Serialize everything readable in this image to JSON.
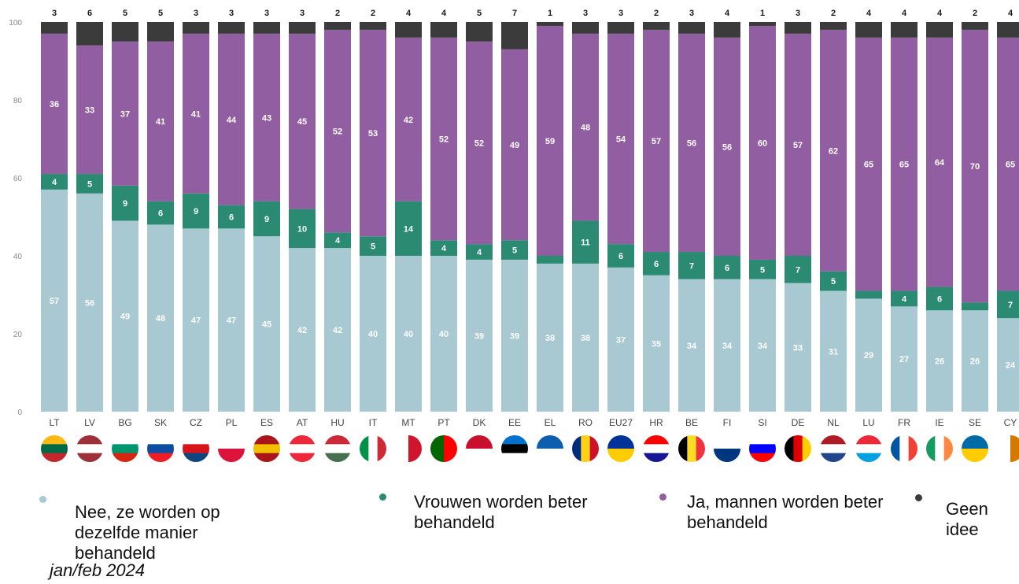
{
  "chart_data": {
    "type": "bar",
    "stacked": true,
    "ylim": [
      0,
      100
    ],
    "yticks": [
      0,
      20,
      40,
      60,
      80,
      100
    ],
    "categories": [
      "LT",
      "LV",
      "BG",
      "SK",
      "CZ",
      "PL",
      "ES",
      "AT",
      "HU",
      "IT",
      "MT",
      "PT",
      "DK",
      "EE",
      "EL",
      "RO",
      "EU27",
      "HR",
      "BE",
      "FI",
      "SI",
      "DE",
      "NL",
      "LU",
      "FR",
      "IE",
      "SE",
      "CY"
    ],
    "series": [
      {
        "name": "Nee, ze worden op dezelfde manier behandeld",
        "color": "#a8c8d2",
        "values": [
          57,
          56,
          49,
          48,
          47,
          47,
          45,
          42,
          42,
          40,
          40,
          40,
          39,
          39,
          38,
          38,
          37,
          35,
          34,
          34,
          34,
          33,
          31,
          29,
          27,
          26,
          26,
          24
        ]
      },
      {
        "name": "Vrouwen worden beter behandeld",
        "color": "#2a8a72",
        "values": [
          4,
          5,
          9,
          6,
          9,
          6,
          9,
          10,
          4,
          5,
          14,
          4,
          4,
          5,
          2,
          11,
          6,
          6,
          7,
          6,
          5,
          7,
          5,
          2,
          4,
          6,
          2,
          7
        ]
      },
      {
        "name": "Ja, mannen worden beter behandeld",
        "color": "#925ea2",
        "values": [
          36,
          33,
          37,
          41,
          41,
          44,
          43,
          45,
          52,
          53,
          42,
          52,
          52,
          49,
          59,
          48,
          54,
          57,
          56,
          56,
          60,
          57,
          62,
          65,
          65,
          64,
          70,
          65
        ]
      },
      {
        "name": "Geen idee",
        "color": "#3b3b3b",
        "values": [
          3,
          6,
          5,
          5,
          3,
          3,
          3,
          3,
          2,
          2,
          4,
          4,
          5,
          7,
          1,
          3,
          3,
          2,
          3,
          4,
          1,
          3,
          2,
          4,
          4,
          4,
          2,
          4
        ]
      }
    ],
    "labels": [
      [
        "57",
        "56",
        "49",
        "48",
        "47",
        "47",
        "45",
        "42",
        "42",
        "40",
        "40",
        "40",
        "39",
        "39",
        "38",
        "38",
        "37",
        "35",
        "34",
        "34",
        "34",
        "33",
        "31",
        "29",
        "27",
        "26",
        "26",
        "24"
      ],
      [
        "4",
        "5",
        "9",
        "6",
        "9",
        "6",
        "9",
        "10",
        "4",
        "5",
        "14",
        "4",
        "4",
        "5",
        "",
        "11",
        "6",
        "6",
        "7",
        "6",
        "5",
        "7",
        "5",
        "",
        "4",
        "6",
        "",
        "7"
      ],
      [
        "36",
        "33",
        "37",
        "41",
        "41",
        "44",
        "43",
        "45",
        "52",
        "53",
        "42",
        "52",
        "52",
        "49",
        "59",
        "48",
        "54",
        "57",
        "56",
        "56",
        "60",
        "57",
        "62",
        "65",
        "65",
        "64",
        "70",
        "65"
      ],
      [
        "3",
        "6",
        "5",
        "5",
        "3",
        "3",
        "3",
        "3",
        "2",
        "2",
        "4",
        "4",
        "5",
        "7",
        "1",
        "3",
        "3",
        "2",
        "3",
        "4",
        "1",
        "3",
        "2",
        "4",
        "4",
        "4",
        "2",
        "4"
      ]
    ]
  },
  "flag_colors": {
    "LT": [
      "#fdb913",
      "#006a44",
      "#c1272d"
    ],
    "LV": [
      "#9e3039",
      "#ffffff",
      "#9e3039"
    ],
    "BG": [
      "#ffffff",
      "#00966e",
      "#d62612"
    ],
    "SK": [
      "#ffffff",
      "#0b4ea2",
      "#ee1c25"
    ],
    "CZ": [
      "#ffffff",
      "#d7141a",
      "#11457e"
    ],
    "PL": [
      "#ffffff",
      "#dc143c"
    ],
    "ES": [
      "#aa151b",
      "#f1bf00",
      "#aa151b"
    ],
    "AT": [
      "#ed2939",
      "#ffffff",
      "#ed2939"
    ],
    "HU": [
      "#ce2939",
      "#ffffff",
      "#477050"
    ],
    "IT": [
      "#009246",
      "#ffffff",
      "#ce2b37"
    ],
    "MT": [
      "#ffffff",
      "#cf142b"
    ],
    "PT": [
      "#006600",
      "#ff0000"
    ],
    "DK": [
      "#c8102e",
      "#ffffff"
    ],
    "EE": [
      "#0072ce",
      "#000000",
      "#ffffff"
    ],
    "EL": [
      "#0d5eaf",
      "#ffffff"
    ],
    "RO": [
      "#002b7f",
      "#fcd116",
      "#ce1126"
    ],
    "EU27": [
      "#003399",
      "#ffcc00"
    ],
    "HR": [
      "#ff0000",
      "#ffffff",
      "#171796"
    ],
    "BE": [
      "#000000",
      "#fdda24",
      "#ef3340"
    ],
    "FI": [
      "#ffffff",
      "#003580"
    ],
    "SI": [
      "#ffffff",
      "#0000ff",
      "#ff0000"
    ],
    "DE": [
      "#000000",
      "#dd0000",
      "#ffce00"
    ],
    "NL": [
      "#ae1c28",
      "#ffffff",
      "#21468b"
    ],
    "LU": [
      "#ed2939",
      "#ffffff",
      "#00a1de"
    ],
    "FR": [
      "#0055a4",
      "#ffffff",
      "#ef4135"
    ],
    "IE": [
      "#169b62",
      "#ffffff",
      "#ff883e"
    ],
    "SE": [
      "#006aa7",
      "#fecc00"
    ],
    "CY": [
      "#ffffff",
      "#d57800"
    ]
  },
  "legend": [
    {
      "label": "Nee, ze worden op dezelfde manier behandeld",
      "color": "#a8c8d2"
    },
    {
      "label": "Vrouwen worden beter behandeld",
      "color": "#2a8a72"
    },
    {
      "label": "Ja, mannen worden beter behandeld",
      "color": "#925ea2"
    },
    {
      "label": "Geen idee",
      "color": "#3b3b3b"
    }
  ],
  "note": "jan/feb 2024"
}
